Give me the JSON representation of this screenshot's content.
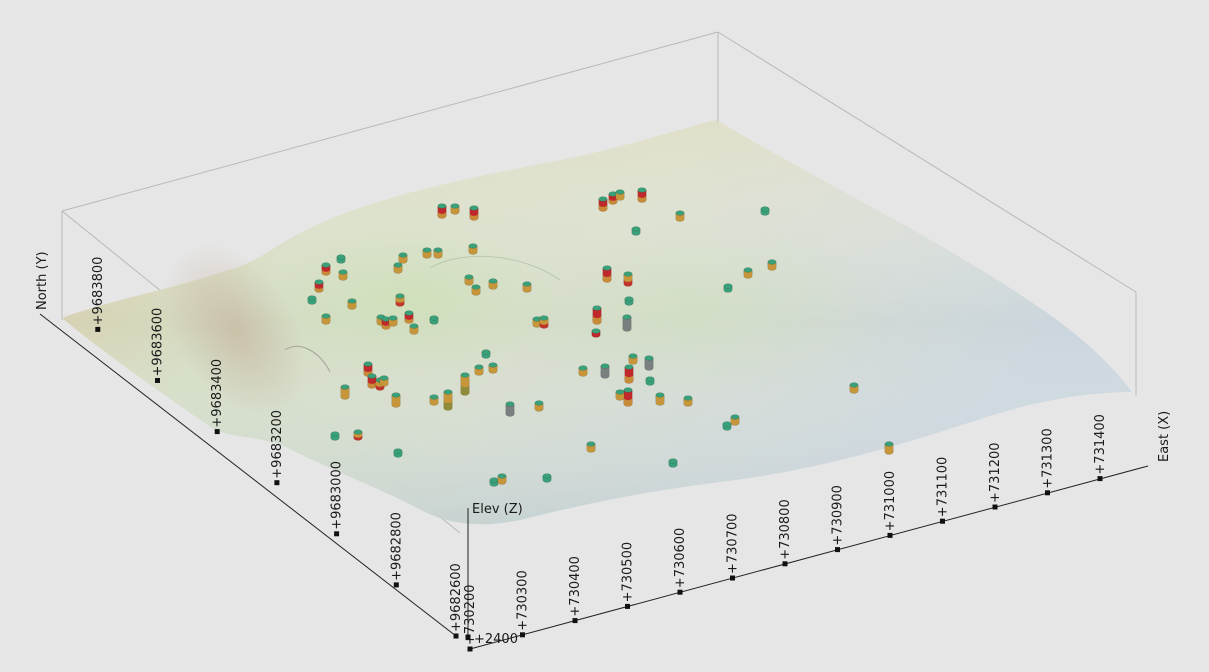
{
  "axes": {
    "x": {
      "title": "East (X)",
      "ticks": [
        "+730200",
        "+730300",
        "+730400",
        "+730500",
        "+730600",
        "+730700",
        "+730800",
        "+730900",
        "+731000",
        "+731100",
        "+731200",
        "+731300",
        "+731400"
      ]
    },
    "y": {
      "title": "North (Y)",
      "ticks": [
        "+9682600",
        "+9682800",
        "+9683000",
        "+9683200",
        "+9683400",
        "+9683600",
        "+9683800"
      ]
    },
    "z": {
      "title": "Elev (Z)",
      "ticks": [
        "+2400"
      ]
    }
  },
  "colors": {
    "background": "#e6e6e6",
    "box_edges": "#b9b9b9",
    "axis_line": "#222222",
    "well_top": "#3aa07a",
    "well_red": "#c0282c",
    "well_orange": "#c8963a",
    "well_olive": "#8a8a3c",
    "well_gray": "#7a7f80"
  },
  "icons": {
    "well_marker": "cylinder-icon"
  }
}
